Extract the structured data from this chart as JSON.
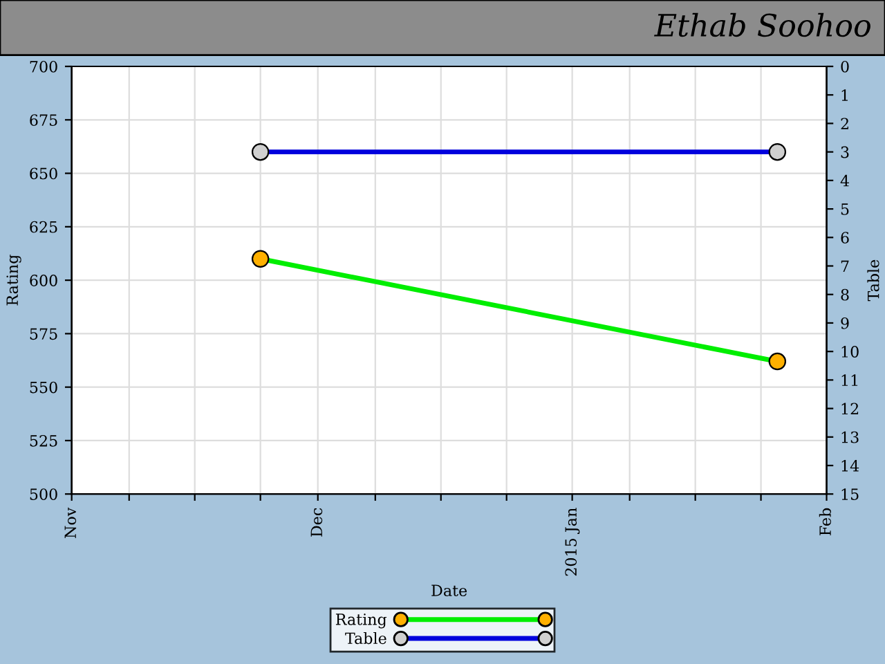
{
  "chart_data": {
    "type": "line",
    "title": "Ethab Soohoo",
    "xlabel": "Date",
    "ylabel": "Rating",
    "y2label": "Table",
    "x": [
      "2014-11-24",
      "2015-01-26"
    ],
    "series": [
      {
        "name": "Rating",
        "color": "#00ee00",
        "colors": [
          "#ffb000",
          "#ffb000"
        ],
        "values": [
          610,
          562
        ]
      },
      {
        "name": "Table",
        "color": "#0000dd",
        "colors": [
          "#d0d0d0",
          "#d0d0d0"
        ],
        "values": [
          3,
          3
        ],
        "axis": "y2"
      }
    ],
    "xlim": [
      "2014-11-01",
      "2015-02-01"
    ],
    "xticks": [
      {
        "value": "2014-11-01",
        "label": "Nov"
      },
      {
        "value": "2014-11-08",
        "label": null
      },
      {
        "value": "2014-11-16",
        "label": null
      },
      {
        "value": "2014-11-24",
        "label": null
      },
      {
        "value": "2014-12-01",
        "label": "Dec"
      },
      {
        "value": "2014-12-08",
        "label": null
      },
      {
        "value": "2014-12-16",
        "label": null
      },
      {
        "value": "2014-12-24",
        "label": null
      },
      {
        "value": "2015-01-01",
        "label": "2015 Jan"
      },
      {
        "value": "2015-01-08",
        "label": null
      },
      {
        "value": "2015-01-16",
        "label": null
      },
      {
        "value": "2015-01-24",
        "label": null
      },
      {
        "value": "2015-02-01",
        "label": "Feb"
      }
    ],
    "ylim": [
      500,
      700
    ],
    "yticks": [
      500,
      525,
      550,
      575,
      600,
      625,
      650,
      675,
      700
    ],
    "y2lim": [
      15,
      0
    ],
    "y2ticks": [
      0,
      1,
      2,
      3,
      4,
      5,
      6,
      7,
      8,
      9,
      10,
      11,
      12,
      13,
      14,
      15
    ],
    "grid": true,
    "legend": "bottom",
    "marker": "circle",
    "line_style": "solid"
  }
}
